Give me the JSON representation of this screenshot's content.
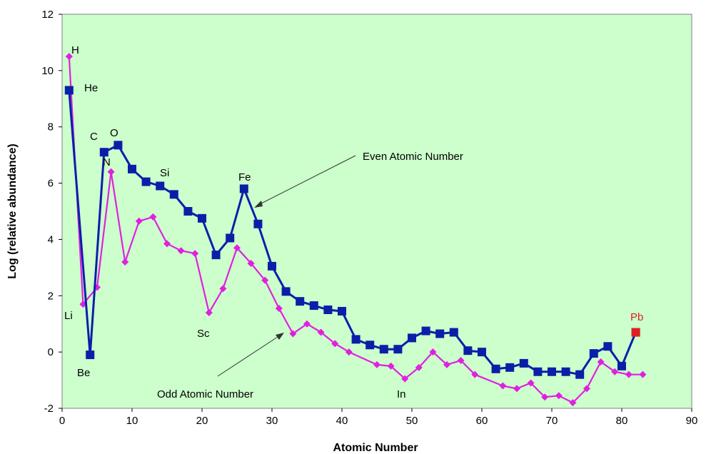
{
  "chart_data": {
    "type": "line",
    "title": "",
    "xlabel": "Atomic Number",
    "ylabel": "Log (relative abundance)",
    "xlim": [
      0,
      90
    ],
    "ylim": [
      -2,
      12
    ],
    "xticks": [
      0,
      10,
      20,
      30,
      40,
      50,
      60,
      70,
      80,
      90
    ],
    "yticks": [
      -2,
      0,
      2,
      4,
      6,
      8,
      10,
      12
    ],
    "plot_background": "#ccffcc",
    "grid": false,
    "legend": "none",
    "series": [
      {
        "key": "even",
        "color": "#0a1fa8",
        "marker": "square",
        "x": [
          1,
          4,
          6,
          8,
          10,
          12,
          14,
          16,
          18,
          20,
          22,
          24,
          26,
          28,
          30,
          32,
          34,
          36,
          38,
          40,
          42,
          44,
          46,
          48,
          50,
          52,
          54,
          56,
          58,
          60,
          62,
          64,
          66,
          68,
          70,
          72,
          74,
          76,
          78,
          80,
          82
        ],
        "y": [
          9.3,
          -0.1,
          7.1,
          7.35,
          6.5,
          6.05,
          5.9,
          5.6,
          5.0,
          4.75,
          3.45,
          4.05,
          5.8,
          4.55,
          3.05,
          2.15,
          1.8,
          1.65,
          1.5,
          1.45,
          0.45,
          0.25,
          0.1,
          0.1,
          0.5,
          0.75,
          0.65,
          0.7,
          0.05,
          0.0,
          -0.6,
          -0.55,
          -0.4,
          -0.7,
          -0.7,
          -0.7,
          -0.8,
          -0.05,
          0.2,
          -0.5,
          0.7
        ]
      },
      {
        "key": "odd",
        "color": "#e020e0",
        "marker": "diamond",
        "x": [
          1,
          3,
          5,
          7,
          9,
          11,
          13,
          15,
          17,
          19,
          21,
          23,
          25,
          27,
          29,
          31,
          33,
          35,
          37,
          39,
          41,
          45,
          47,
          49,
          51,
          53,
          55,
          57,
          59,
          63,
          65,
          67,
          69,
          71,
          73,
          75,
          77,
          79,
          81,
          83
        ],
        "y": [
          10.5,
          1.7,
          2.3,
          6.4,
          3.2,
          4.65,
          4.8,
          3.85,
          3.6,
          3.5,
          1.4,
          2.25,
          3.7,
          3.15,
          2.55,
          1.55,
          0.65,
          1.0,
          0.7,
          0.3,
          0.0,
          -0.45,
          -0.5,
          -0.95,
          -0.55,
          0.0,
          -0.45,
          -0.3,
          -0.8,
          -1.2,
          -1.3,
          -1.1,
          -1.6,
          -1.55,
          -1.8,
          -1.3,
          -0.35,
          -0.7,
          -0.8,
          -0.8
        ]
      }
    ],
    "highlight": {
      "label": "Pb",
      "x": 82,
      "y": 0.7,
      "color": "#e02020"
    },
    "annotations": {
      "H": "H",
      "He": "He",
      "C": "C",
      "O": "O",
      "N": "N",
      "Si": "Si",
      "Fe": "Fe",
      "Li": "Li",
      "Be": "Be",
      "Sc": "Sc",
      "In": "In",
      "Pb": "Pb",
      "even_label": "Even Atomic Number",
      "odd_label": "Odd Atomic Number"
    }
  }
}
